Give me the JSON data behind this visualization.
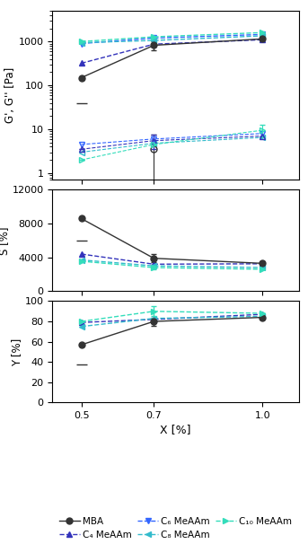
{
  "x": [
    0.5,
    0.7,
    1.0
  ],
  "colors": {
    "MBA": "#333333",
    "C4": "#3333bb",
    "C6": "#3366ff",
    "C8": "#33bbcc",
    "C10": "#33ddbb"
  },
  "markers": {
    "MBA": "o",
    "C4": "^",
    "C6": "v",
    "C8": "<",
    "C10": ">"
  },
  "G_prime": {
    "MBA": [
      150,
      820,
      1150
    ],
    "C4": [
      320,
      870,
      1100
    ],
    "C6": [
      900,
      1200,
      1450
    ],
    "C8": [
      940,
      1060,
      1350
    ],
    "C10": [
      1000,
      1280,
      1600
    ]
  },
  "G_prime_err": {
    "MBA": [
      0,
      200,
      0
    ],
    "C4": [
      0,
      0,
      0
    ],
    "C6": [
      0,
      0,
      0
    ],
    "C8": [
      0,
      0,
      0
    ],
    "C10": [
      0,
      0,
      0
    ]
  },
  "G_double_prime": {
    "MBA": [
      null,
      3.5,
      null
    ],
    "C4": [
      3.5,
      5.5,
      7.0
    ],
    "C6": [
      4.5,
      6.0,
      8.0
    ],
    "C8": [
      3.0,
      4.8,
      6.5
    ],
    "C10": [
      2.0,
      4.5,
      9.5
    ]
  },
  "G_double_prime_err": {
    "MBA": [
      0,
      4.0,
      0
    ],
    "C4": [
      0,
      2.0,
      0
    ],
    "C6": [
      0,
      0,
      0
    ],
    "C8": [
      0,
      0,
      0
    ],
    "C10": [
      0,
      0,
      3.0
    ]
  },
  "S_data": {
    "MBA": [
      8600,
      3900,
      3300
    ],
    "C4": [
      4400,
      3200,
      3250
    ],
    "C6": [
      null,
      null,
      null
    ],
    "C8": [
      3700,
      3000,
      2800
    ],
    "C10": [
      3550,
      2800,
      2600
    ]
  },
  "S_err": {
    "MBA": [
      0,
      500,
      0
    ],
    "C4": [
      0,
      0,
      0
    ],
    "C6": [
      0,
      0,
      0
    ],
    "C8": [
      0,
      0,
      0
    ],
    "C10": [
      0,
      200,
      0
    ]
  },
  "Y_data": {
    "MBA": [
      57,
      80,
      84
    ],
    "C4": [
      79,
      82,
      87
    ],
    "C6": [
      null,
      null,
      null
    ],
    "C8": [
      75,
      83,
      85
    ],
    "C10": [
      80,
      90,
      88
    ]
  },
  "Y_err": {
    "MBA": [
      0,
      4,
      0
    ],
    "C4": [
      0,
      0,
      0
    ],
    "C6": [
      0,
      0,
      0
    ],
    "C8": [
      0,
      0,
      0
    ],
    "C10": [
      0,
      5,
      0
    ]
  },
  "ylabel_top": "G', G'' [Pa]",
  "ylabel_mid": "S [%]",
  "ylabel_bot": "Y [%]",
  "xlabel": "X [%]",
  "xticks": [
    0.5,
    0.7,
    1.0
  ],
  "xlim": [
    0.42,
    1.1
  ],
  "legend_labels": [
    "MBA",
    "C₄ MeAAm",
    "C₆ MeAAm",
    "C₈ MeAAm",
    "C₁₀ MeAAm"
  ]
}
